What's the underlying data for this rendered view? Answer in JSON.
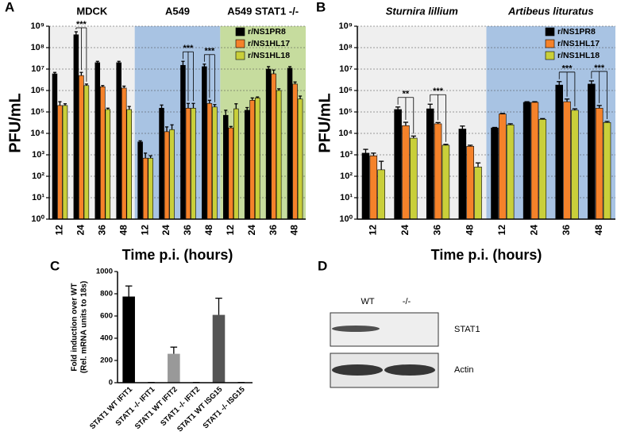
{
  "chart_data": [
    {
      "panel": "A",
      "type": "bar",
      "log_scale": true,
      "grid": true,
      "legend": "upper right",
      "ylabel": "PFU/mL",
      "xlabel": "Time p.i. (hours)",
      "groups": [
        {
          "name": "MDCK",
          "background": "#efefef",
          "categories": [
            "12",
            "24",
            "36",
            "48"
          ]
        },
        {
          "name": "A549",
          "background": "#a8c3e3",
          "categories": [
            "12",
            "24",
            "36",
            "48"
          ]
        },
        {
          "name": "A549 STAT1 -/-",
          "background": "#c6dc9e",
          "categories": [
            "12",
            "24",
            "36",
            "48"
          ]
        }
      ],
      "series": [
        {
          "name": "r/NS1PR8",
          "color": "#000000",
          "values": [
            6000000,
            400000000,
            20000000,
            20000000,
            4000,
            150000,
            15000000,
            13000000,
            70000,
            120000,
            10000000,
            11000000
          ],
          "errors": [
            1000000,
            150000000,
            3000000,
            3000000,
            500,
            60000,
            8000000,
            4000000,
            50000,
            40000,
            3000000,
            2000000
          ]
        },
        {
          "name": "r/NS1HL17",
          "color": "#f5822a",
          "values": [
            200000,
            5000000,
            1500000,
            1300000,
            700,
            12000,
            150000,
            250000,
            18000,
            350000,
            6000000,
            2000000
          ],
          "errors": [
            100000,
            2000000,
            200000,
            300000,
            500,
            8000,
            100000,
            100000,
            3000,
            100000,
            3000000,
            500000
          ]
        },
        {
          "name": "r/NS1HL18",
          "color": "#c9cf3a",
          "values": [
            200000,
            1700000,
            130000,
            130000,
            700,
            15000,
            150000,
            170000,
            140000,
            450000,
            1000000,
            400000
          ],
          "errors": [
            40000,
            300000,
            20000,
            50000,
            200,
            10000,
            100000,
            50000,
            100000,
            50000,
            200000,
            150000
          ]
        }
      ],
      "ylim": [
        1,
        1000000000
      ],
      "yticks": [
        {
          "value": 1,
          "label": "10⁰"
        },
        {
          "value": 10,
          "label": "10¹"
        },
        {
          "value": 100,
          "label": "10²"
        },
        {
          "value": 1000,
          "label": "10³"
        },
        {
          "value": 10000,
          "label": "10⁴"
        },
        {
          "value": 100000,
          "label": "10⁵"
        },
        {
          "value": 1000000,
          "label": "10⁶"
        },
        {
          "value": 10000000,
          "label": "10⁷"
        },
        {
          "value": 100000000,
          "label": "10⁸"
        },
        {
          "value": 1000000000,
          "label": "10⁹"
        }
      ],
      "annotations": [
        {
          "text": "***",
          "group": "MDCK",
          "category": "24"
        },
        {
          "text": "***",
          "group": "A549",
          "category": "36"
        },
        {
          "text": "***",
          "group": "A549",
          "category": "48"
        }
      ]
    },
    {
      "panel": "B",
      "type": "bar",
      "log_scale": true,
      "grid": true,
      "legend": "upper right",
      "ylabel": "PFU/mL",
      "xlabel": "Time p.i. (hours)",
      "groups": [
        {
          "name": "Sturnira lillium",
          "font_style": "italic",
          "background": "#efefef",
          "categories": [
            "12",
            "24",
            "36",
            "48"
          ]
        },
        {
          "name": "Artibeus lituratus",
          "font_style": "italic",
          "background": "#a8c3e3",
          "categories": [
            "12",
            "24",
            "36",
            "48"
          ]
        }
      ],
      "series": [
        {
          "name": "r/NS1PR8",
          "color": "#000000",
          "values": [
            1200,
            130000,
            140000,
            16000,
            18000,
            280000,
            1800000,
            2000000
          ],
          "errors": [
            600,
            40000,
            90000,
            6000,
            1000,
            20000,
            800000,
            800000
          ]
        },
        {
          "name": "r/NS1HL17",
          "color": "#f5822a",
          "values": [
            900,
            23000,
            28000,
            2500,
            80000,
            280000,
            300000,
            150000
          ],
          "errors": [
            300,
            10000,
            4000,
            300,
            5000,
            20000,
            100000,
            50000
          ]
        },
        {
          "name": "r/NS1HL18",
          "color": "#c9cf3a",
          "values": [
            200,
            6000,
            2800,
            270,
            25000,
            45000,
            120000,
            32000
          ],
          "errors": [
            300,
            1500,
            300,
            150,
            3000,
            4000,
            20000,
            4000
          ]
        }
      ],
      "ylim": [
        1,
        1000000000
      ],
      "yticks": [
        {
          "value": 1,
          "label": "10⁰"
        },
        {
          "value": 10,
          "label": "10¹"
        },
        {
          "value": 100,
          "label": "10²"
        },
        {
          "value": 1000,
          "label": "10³"
        },
        {
          "value": 10000,
          "label": "10⁴"
        },
        {
          "value": 100000,
          "label": "10⁵"
        },
        {
          "value": 1000000,
          "label": "10⁶"
        },
        {
          "value": 10000000,
          "label": "10⁷"
        },
        {
          "value": 100000000,
          "label": "10⁸"
        },
        {
          "value": 1000000000,
          "label": "10⁹"
        }
      ],
      "annotations": [
        {
          "text": "**",
          "group": "Sturnira lillium",
          "category": "24"
        },
        {
          "text": "***",
          "group": "Sturnira lillium",
          "category": "36"
        },
        {
          "text": "***",
          "group": "Artibeus lituratus",
          "category": "36"
        },
        {
          "text": "***",
          "group": "Artibeus lituratus",
          "category": "48"
        }
      ]
    },
    {
      "panel": "C",
      "type": "bar",
      "log_scale": false,
      "grid": false,
      "ylabel": [
        "Fold induction over WT",
        "(Rel. mRNA units to 18s)"
      ],
      "categories": [
        "STAT1 WT IFIT1",
        "STAT1 -/- IFIT1",
        "STAT1 WT IFIT2",
        "STAT1 -/- IFIT2",
        "STAT1 WT ISG15",
        "STAT1 -/- ISG15"
      ],
      "values": [
        775,
        2,
        260,
        2,
        610,
        2
      ],
      "errors": [
        95,
        0,
        60,
        0,
        150,
        0
      ],
      "colors": [
        "#000000",
        "#000000",
        "#999999",
        "#999999",
        "#555555",
        "#555555"
      ],
      "ylim": [
        0,
        1000
      ],
      "yticks": [
        0,
        200,
        400,
        600,
        800,
        1000
      ]
    }
  ],
  "blot": {
    "panel": "D",
    "lanes": [
      "WT",
      "-/-"
    ],
    "bands": [
      "STAT1",
      "Actin"
    ]
  }
}
